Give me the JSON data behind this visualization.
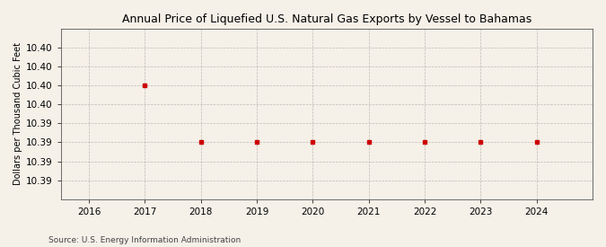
{
  "title": "Annual Price of Liquefied U.S. Natural Gas Exports by Vessel to Bahamas",
  "ylabel": "Dollars per Thousand Cubic Feet",
  "source": "Source: U.S. Energy Information Administration",
  "x_values": [
    2017,
    2018,
    2019,
    2020,
    2021,
    2022,
    2023,
    2024
  ],
  "marker_color": "#cc0000",
  "background_color": "#f5f0e8",
  "grid_color": "#999999",
  "xlim_min": 2015.5,
  "xlim_max": 2025.0,
  "xticks": [
    2016,
    2017,
    2018,
    2019,
    2020,
    2021,
    2022,
    2023,
    2024
  ],
  "title_fontsize": 9,
  "ylabel_fontsize": 7,
  "tick_fontsize": 7.5,
  "source_fontsize": 6.5
}
